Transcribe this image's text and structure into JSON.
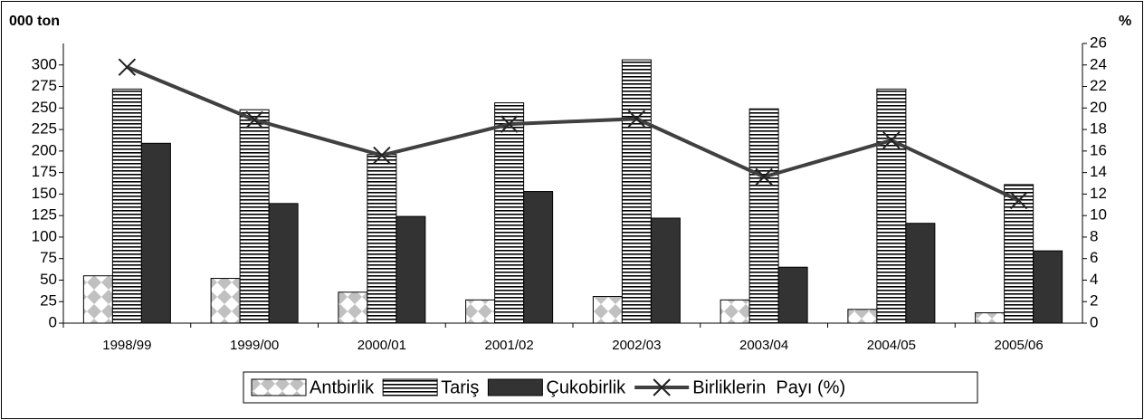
{
  "chart_data": {
    "type": "bar",
    "y_label": "000 ton",
    "y2_label": "%",
    "categories": [
      "1998/99",
      "1999/00",
      "2000/01",
      "2001/02",
      "2002/03",
      "2003/04",
      "2004/05",
      "2005/06"
    ],
    "series": [
      {
        "name": "Antbirlik",
        "color": "#c0c0c0",
        "pattern": "diamond",
        "values": [
          55,
          52,
          36,
          27,
          31,
          27,
          16,
          12
        ]
      },
      {
        "name": "Tariş",
        "color": "#ffffff",
        "pattern": "hstripe",
        "values": [
          272,
          248,
          196,
          256,
          306,
          249,
          272,
          161
        ]
      },
      {
        "name": "Çukobirlik",
        "color": "#333333",
        "pattern": "solid",
        "values": [
          209,
          139,
          124,
          153,
          122,
          65,
          116,
          84
        ]
      },
      {
        "name": "Birliklerin  Payı (%)",
        "color": "#404040",
        "type": "line",
        "axis": "y2",
        "values": [
          23.8,
          18.9,
          15.6,
          18.5,
          19.0,
          13.6,
          17.0,
          11.4
        ]
      }
    ],
    "ylim": [
      0,
      325
    ],
    "yticks": [
      0,
      25,
      50,
      75,
      100,
      125,
      150,
      175,
      200,
      225,
      250,
      275,
      300
    ],
    "y2lim": [
      0,
      26
    ],
    "y2ticks": [
      0,
      2,
      4,
      6,
      8,
      10,
      12,
      14,
      16,
      18,
      20,
      22,
      24,
      26
    ]
  }
}
